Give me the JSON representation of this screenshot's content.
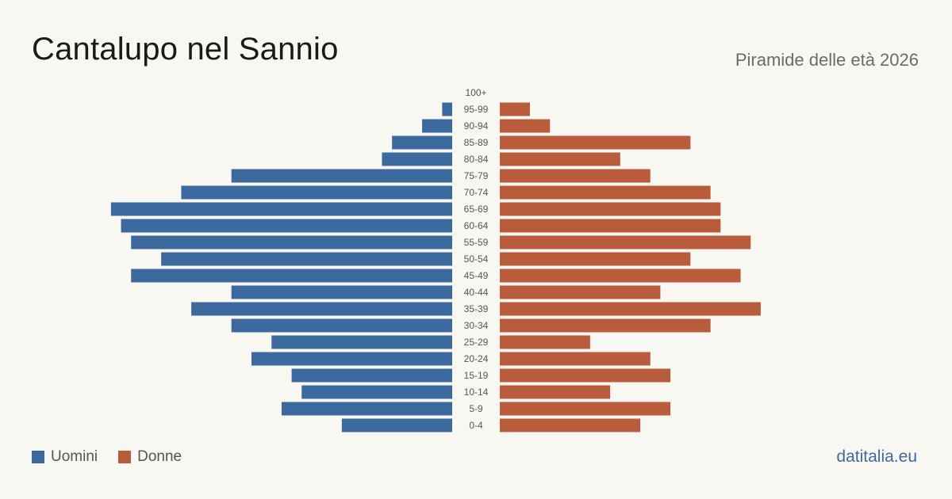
{
  "header": {
    "title": "Cantalupo nel Sannio",
    "subtitle": "Piramide delle età 2026"
  },
  "legend": {
    "men_label": "Uomini",
    "women_label": "Donne"
  },
  "colors": {
    "men": "#3d6a9e",
    "women": "#b85c3c",
    "background": "#f9f7f2"
  },
  "footer": {
    "brand": "datitalia.eu"
  },
  "chart_data": {
    "type": "bar",
    "orientation": "horizontal-pyramid",
    "categories": [
      "0-4",
      "5-9",
      "10-14",
      "15-19",
      "20-24",
      "25-29",
      "30-34",
      "35-39",
      "40-44",
      "45-49",
      "50-54",
      "55-59",
      "60-64",
      "65-69",
      "70-74",
      "75-79",
      "80-84",
      "85-89",
      "90-94",
      "95-99",
      "100+"
    ],
    "series": [
      {
        "name": "Uomini",
        "values": [
          11,
          17,
          15,
          16,
          20,
          18,
          22,
          26,
          22,
          32,
          29,
          32,
          33,
          34,
          27,
          22,
          7,
          6,
          3,
          1,
          0
        ]
      },
      {
        "name": "Donne",
        "values": [
          14,
          17,
          11,
          17,
          15,
          9,
          21,
          26,
          16,
          24,
          19,
          25,
          22,
          22,
          21,
          15,
          12,
          19,
          5,
          3,
          0
        ]
      }
    ],
    "grid": false,
    "legend_position": "bottom-left"
  }
}
